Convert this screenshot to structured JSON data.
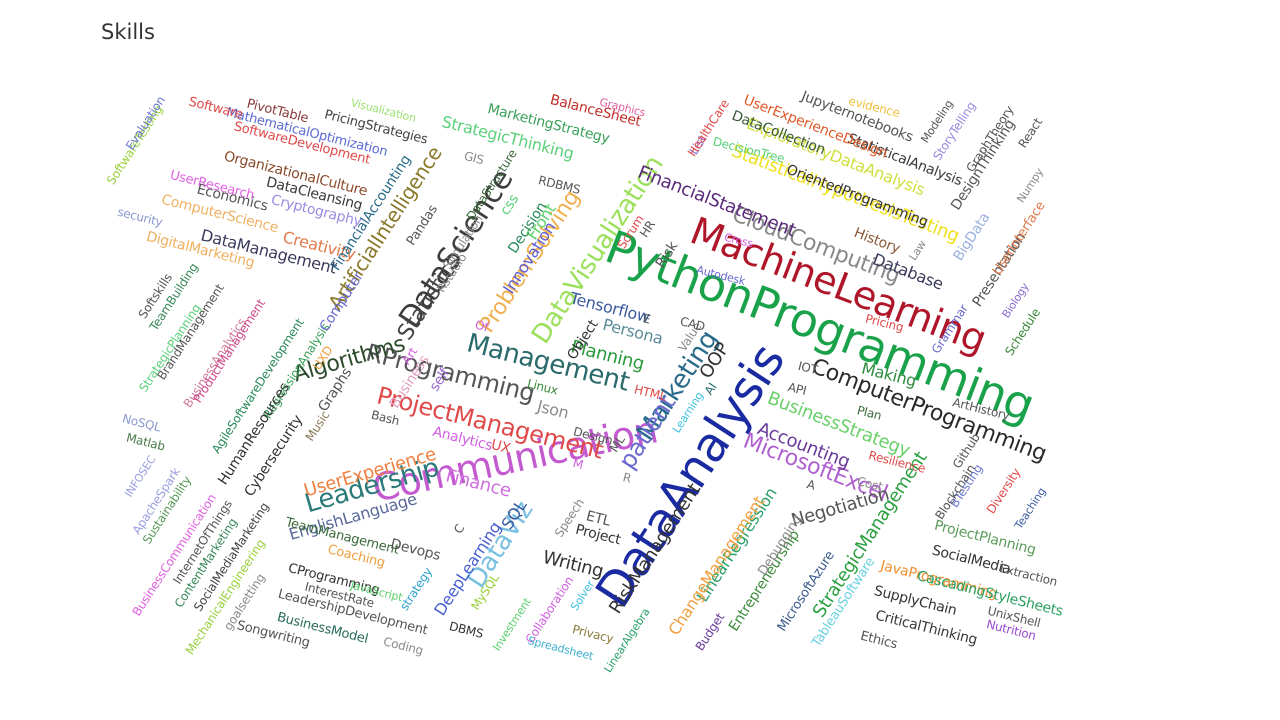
{
  "title": "Skills",
  "words": [
    {
      "t": "PythonProgramming",
      "c": "#1aa24a"
    },
    {
      "t": "DataAnalysis",
      "c": "#1a2aa0"
    },
    {
      "t": "MachineLearning",
      "c": "#b0162a"
    },
    {
      "t": "Communication",
      "c": "#c45ad0"
    },
    {
      "t": "DataScience",
      "c": "#3d3d3d"
    },
    {
      "t": "DataVisualization",
      "c": "#9be05a"
    },
    {
      "t": "Management",
      "c": "#2a6a6a"
    },
    {
      "t": "ProjectManagement",
      "c": "#e04a4a"
    },
    {
      "t": "Leadership",
      "c": "#2a7a7a"
    },
    {
      "t": "RProgramming",
      "c": "#555555"
    },
    {
      "t": "ProblemSolving",
      "c": "#f0b050"
    },
    {
      "t": "ArtificialIntelligence",
      "c": "#8a7a2a"
    },
    {
      "t": "Marketing",
      "c": "#2a6a8a"
    },
    {
      "t": "Statistics",
      "c": "#444444"
    },
    {
      "t": "ComputerProgramming",
      "c": "#2a2a2a"
    },
    {
      "t": "CloudComputing",
      "c": "#888888"
    },
    {
      "t": "MicrosoftExcel",
      "c": "#b060d0"
    },
    {
      "t": "Algorithms",
      "c": "#2a4a2a"
    },
    {
      "t": "DataViz",
      "c": "#7ac0e0"
    },
    {
      "t": "Finance",
      "c": "#d070e0"
    },
    {
      "t": "StrategicManagement",
      "c": "#2aa040"
    },
    {
      "t": "BusinessStrategy",
      "c": "#6ad06a"
    },
    {
      "t": "StatisticalHypothesisTesting",
      "c": "#f0e020"
    },
    {
      "t": "FinancialStatement",
      "c": "#5a2a7a"
    },
    {
      "t": "Accounting",
      "c": "#6a3a9a"
    },
    {
      "t": "Writing",
      "c": "#333333"
    },
    {
      "t": "RiskManagement",
      "c": "#333333"
    },
    {
      "t": "Planning",
      "c": "#2a9a3a"
    },
    {
      "t": "UserExperience",
      "c": "#f08040"
    },
    {
      "t": "EnglishLanguage",
      "c": "#5a6a9a"
    },
    {
      "t": "Negotiation",
      "c": "#555555"
    },
    {
      "t": "Database",
      "c": "#3a3a5a"
    },
    {
      "t": "Making",
      "c": "#2a8a3a"
    },
    {
      "t": "Innovation",
      "c": "#6060d0"
    },
    {
      "t": "LinearRegression",
      "c": "#2aa06a"
    },
    {
      "t": "DeepLearning",
      "c": "#4a60d0"
    },
    {
      "t": "ChangeManagement",
      "c": "#f0a040"
    },
    {
      "t": "Creativity",
      "c": "#e07a4a"
    },
    {
      "t": "DataManagement",
      "c": "#3a3a5a"
    },
    {
      "t": "ExploratoryDataAnalysis",
      "c": "#d0e040"
    },
    {
      "t": "StatisticalAnalysis",
      "c": "#3a3a3a"
    },
    {
      "t": "OrientedProgramming",
      "c": "#333333"
    },
    {
      "t": "UserExperienceDesign",
      "c": "#e05a2a"
    },
    {
      "t": "StrategicThinking",
      "c": "#5ad07a"
    },
    {
      "t": "MarketingStrategy",
      "c": "#3aa05a"
    },
    {
      "t": "BalanceSheet",
      "c": "#c0302a"
    },
    {
      "t": "Jupyternotebooks",
      "c": "#555555"
    },
    {
      "t": "DataCollection",
      "c": "#3a5a3a"
    },
    {
      "t": "DesignThinking",
      "c": "#555555"
    },
    {
      "t": "Presentation",
      "c": "#555555"
    },
    {
      "t": "History",
      "c": "#8a5a3a"
    },
    {
      "t": "BigData",
      "c": "#9ab0e0"
    },
    {
      "t": "UserInterface",
      "c": "#e07a4a"
    },
    {
      "t": "SocialMedia",
      "c": "#333333"
    },
    {
      "t": "ProjectPlanning",
      "c": "#5a9a5a"
    },
    {
      "t": "JavaProgramming",
      "c": "#f09030"
    },
    {
      "t": "CascadingStyleSheets",
      "c": "#2aa060"
    },
    {
      "t": "SupplyChain",
      "c": "#333333"
    },
    {
      "t": "CriticalThinking",
      "c": "#3a3a3a"
    },
    {
      "t": "Entrepreneurship",
      "c": "#3a8a3a"
    },
    {
      "t": "Debugging",
      "c": "#888888"
    },
    {
      "t": "MicrosoftAzure",
      "c": "#3a5a8a"
    },
    {
      "t": "TableauSoftware",
      "c": "#6ad0e0"
    },
    {
      "t": "SoftwareDevelopment",
      "c": "#e04a4a"
    },
    {
      "t": "MathematicalOptimization",
      "c": "#5a6ad0"
    },
    {
      "t": "OrganizationalCulture",
      "c": "#8a4a2a"
    },
    {
      "t": "DataCleansing",
      "c": "#3a3a3a"
    },
    {
      "t": "Cryptography",
      "c": "#9a8ae0"
    },
    {
      "t": "Economics",
      "c": "#555555"
    },
    {
      "t": "ComputerScience",
      "c": "#f0b060"
    },
    {
      "t": "DigitalMarketing",
      "c": "#f0b060"
    },
    {
      "t": "UserResearch",
      "c": "#e060e0"
    },
    {
      "t": "PricingStrategies",
      "c": "#444444"
    },
    {
      "t": "PivotTable",
      "c": "#8a3a3a"
    },
    {
      "t": "Software",
      "c": "#e04a4a"
    },
    {
      "t": "Visualization",
      "c": "#9ae070"
    },
    {
      "t": "Graphics",
      "c": "#e060a0"
    },
    {
      "t": "SoftwareTesting",
      "c": "#9ad040"
    },
    {
      "t": "Evaluation",
      "c": "#6a7ad0"
    },
    {
      "t": "security",
      "c": "#8a9ad0"
    },
    {
      "t": "Softskills",
      "c": "#555555"
    },
    {
      "t": "TeamBuilding",
      "c": "#3a8a5a"
    },
    {
      "t": "StrategicPlanning",
      "c": "#5ad07a"
    },
    {
      "t": "BrandManagement",
      "c": "#555555"
    },
    {
      "t": "BusinessAnalytics",
      "c": "#d07a9a"
    },
    {
      "t": "ProductManagement",
      "c": "#d04a8a"
    },
    {
      "t": "AgileSoftwareDevelopment",
      "c": "#2a8a5a"
    },
    {
      "t": "RegressionAnalysis",
      "c": "#3aa05a"
    },
    {
      "t": "HumanResources",
      "c": "#333333"
    },
    {
      "t": "Cybersecurity",
      "c": "#333333"
    },
    {
      "t": "NoSQL",
      "c": "#8a9ad0"
    },
    {
      "t": "Matlab",
      "c": "#4a7a4a"
    },
    {
      "t": "INFOSEC",
      "c": "#9aa0e0"
    },
    {
      "t": "ApacheSpark",
      "c": "#9aa0e0"
    },
    {
      "t": "Sustainability",
      "c": "#5a9a5a"
    },
    {
      "t": "BusinessCommunication",
      "c": "#e060e0"
    },
    {
      "t": "InternetOfThings",
      "c": "#555555"
    },
    {
      "t": "ContentMarketing",
      "c": "#3a8a5a"
    },
    {
      "t": "SocialMediaMarketing",
      "c": "#444444"
    },
    {
      "t": "MechanicalEngineering",
      "c": "#9ad040"
    },
    {
      "t": "goalsetting",
      "c": "#8a8a8a"
    },
    {
      "t": "Songwriting",
      "c": "#555555"
    },
    {
      "t": "BusinessModel",
      "c": "#2a6a5a"
    },
    {
      "t": "LeadershipDevelopment",
      "c": "#555555"
    },
    {
      "t": "Coding",
      "c": "#8a8a8a"
    },
    {
      "t": "InterestRate",
      "c": "#555555"
    },
    {
      "t": "CProgramming",
      "c": "#333333"
    },
    {
      "t": "Coaching",
      "c": "#f0a040"
    },
    {
      "t": "TeamManagement",
      "c": "#3a6a3a"
    },
    {
      "t": "JavaScript",
      "c": "#5ad06a"
    },
    {
      "t": "strategy",
      "c": "#30a0d0"
    },
    {
      "t": "Devops",
      "c": "#555555"
    },
    {
      "t": "DBMS",
      "c": "#333333"
    },
    {
      "t": "MySQL",
      "c": "#9ad040"
    },
    {
      "t": "Investment",
      "c": "#5ad06a"
    },
    {
      "t": "Collaboration",
      "c": "#d060e0"
    },
    {
      "t": "Spreadsheet",
      "c": "#40b0d0"
    },
    {
      "t": "Privacy",
      "c": "#8a7a3a"
    },
    {
      "t": "LinearAlgebra",
      "c": "#2aa06a"
    },
    {
      "t": "Solver",
      "c": "#40c0e0"
    },
    {
      "t": "Budget",
      "c": "#6a3a9a"
    },
    {
      "t": "Ethics",
      "c": "#555555"
    },
    {
      "t": "Nutrition",
      "c": "#9a4ad0"
    },
    {
      "t": "UnixShell",
      "c": "#555555"
    },
    {
      "t": "Extraction",
      "c": "#555555"
    },
    {
      "t": "Diversity",
      "c": "#e04a4a"
    },
    {
      "t": "Teaching",
      "c": "#3a5aa0"
    },
    {
      "t": "BTesting",
      "c": "#6a7ad0"
    },
    {
      "t": "Blockchain",
      "c": "#555555"
    },
    {
      "t": "Github",
      "c": "#555555"
    },
    {
      "t": "Cost",
      "c": "#8a8a8a"
    },
    {
      "t": "Resilience",
      "c": "#e04a4a"
    },
    {
      "t": "Plan",
      "c": "#3a6a3a"
    },
    {
      "t": "ArtHistory",
      "c": "#555555"
    },
    {
      "t": "Schedule",
      "c": "#3a8a3a"
    },
    {
      "t": "Biology",
      "c": "#8a6ad0"
    },
    {
      "t": "Pricing",
      "c": "#e04a4a"
    },
    {
      "t": "Grammar",
      "c": "#6a6ad0"
    },
    {
      "t": "Numpy",
      "c": "#8a8a8a"
    },
    {
      "t": "React",
      "c": "#555555"
    },
    {
      "t": "GraphTheory",
      "c": "#555555"
    },
    {
      "t": "StoryTelling",
      "c": "#9a8ae0"
    },
    {
      "t": "Modeling",
      "c": "#555555"
    },
    {
      "t": "evidence",
      "c": "#f0c040"
    },
    {
      "t": "Autodesk",
      "c": "#6a6ad0"
    },
    {
      "t": "Persona",
      "c": "#5a8a9a"
    },
    {
      "t": "Tensorflow",
      "c": "#3a5aa0"
    },
    {
      "t": "Object",
      "c": "#333333"
    },
    {
      "t": "OOP",
      "c": "#333333"
    },
    {
      "t": "AI",
      "c": "#2a6a6a"
    },
    {
      "t": "IOT",
      "c": "#555555"
    },
    {
      "t": "API",
      "c": "#555555"
    },
    {
      "t": "Learning",
      "c": "#40c0e0"
    },
    {
      "t": "Value",
      "c": "#8a8a8a"
    },
    {
      "t": "CAD",
      "c": "#555555"
    },
    {
      "t": "Risk",
      "c": "#555555"
    },
    {
      "t": "HR",
      "c": "#555555"
    },
    {
      "t": "Scrum",
      "c": "#e04a4a"
    },
    {
      "t": "Cross",
      "c": "#d060e0"
    },
    {
      "t": "Law",
      "c": "#8a8a8a"
    },
    {
      "t": "List",
      "c": "#8a6ad0"
    },
    {
      "t": "HealthCare",
      "c": "#e04a4a"
    },
    {
      "t": "DecisionTree",
      "c": "#5ad07a"
    },
    {
      "t": "RDBMS",
      "c": "#555555"
    },
    {
      "t": "Front",
      "c": "#5ad06a"
    },
    {
      "t": "Decision",
      "c": "#2a8a5a"
    },
    {
      "t": "css",
      "c": "#5ad07a"
    },
    {
      "t": "DataStructure",
      "c": "#3a6a3a"
    },
    {
      "t": "Simulation",
      "c": "#8a8a8a"
    },
    {
      "t": "Rstudio",
      "c": "#8a8a8a"
    },
    {
      "t": "GIS",
      "c": "#8a8a8a"
    },
    {
      "t": "Pandas",
      "c": "#555555"
    },
    {
      "t": "FinancialAccounting",
      "c": "#2a6a8a"
    },
    {
      "t": "Computer",
      "c": "#6a6ad0"
    },
    {
      "t": "UXD",
      "c": "#f0a040"
    },
    {
      "t": "Graphs",
      "c": "#555555"
    },
    {
      "t": "Music",
      "c": "#8a7a5a"
    },
    {
      "t": "Bash",
      "c": "#555555"
    },
    {
      "t": "Business",
      "c": "#e0a0c0"
    },
    {
      "t": "Art",
      "c": "#d060e0"
    },
    {
      "t": "Of",
      "c": "#d060e0"
    },
    {
      "t": "self",
      "c": "#9a6ad0"
    },
    {
      "t": "Linux",
      "c": "#3a8a3a"
    },
    {
      "t": "Json",
      "c": "#8a8a8a"
    },
    {
      "t": "Analytics",
      "c": "#d060e0"
    },
    {
      "t": "UX",
      "c": "#e04a4a"
    },
    {
      "t": "Design",
      "c": "#555555"
    },
    {
      "t": "M",
      "c": "#d060e0"
    },
    {
      "t": "ML",
      "c": "#555555"
    },
    {
      "t": "R",
      "c": "#8a8a8a"
    },
    {
      "t": "patient",
      "c": "#6a6ad0"
    },
    {
      "t": "SQL",
      "c": "#3a5aa0"
    },
    {
      "t": "C",
      "c": "#555555"
    },
    {
      "t": "Speech",
      "c": "#8a8a8a"
    },
    {
      "t": "ETL",
      "c": "#555555"
    },
    {
      "t": "Project",
      "c": "#333333"
    },
    {
      "t": "HTML",
      "c": "#e04a4a"
    },
    {
      "t": "E",
      "c": "#555555"
    },
    {
      "t": "A",
      "c": "#555555"
    },
    {
      "t": "to",
      "c": "#f0a040"
    }
  ]
}
